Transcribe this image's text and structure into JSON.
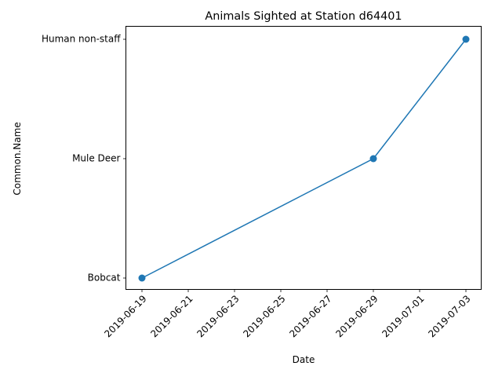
{
  "chart_data": {
    "type": "line",
    "title": "Animals Sighted at Station d64401",
    "xlabel": "Date",
    "ylabel": "Common.Name",
    "x_ticks": [
      "2019-06-19",
      "2019-06-21",
      "2019-06-23",
      "2019-06-25",
      "2019-06-27",
      "2019-06-29",
      "2019-07-01",
      "2019-07-03"
    ],
    "y_categories": [
      "Bobcat",
      "Mule Deer",
      "Human non-staff"
    ],
    "xlim": [
      "2019-06-18",
      "2019-07-04"
    ],
    "grid": false,
    "series": [
      {
        "color": "#1f77b4",
        "marker": "circle",
        "points": [
          {
            "x": "2019-06-19",
            "y": "Bobcat"
          },
          {
            "x": "2019-06-29",
            "y": "Mule Deer"
          },
          {
            "x": "2019-07-03",
            "y": "Human non-staff"
          }
        ]
      }
    ]
  }
}
